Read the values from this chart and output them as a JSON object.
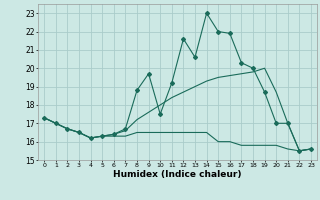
{
  "xlabel": "Humidex (Indice chaleur)",
  "bg_color": "#cce8e4",
  "grid_color": "#aaccca",
  "line_color": "#1a6b5a",
  "xlim": [
    -0.5,
    23.5
  ],
  "ylim": [
    15,
    23.5
  ],
  "xticks": [
    0,
    1,
    2,
    3,
    4,
    5,
    6,
    7,
    8,
    9,
    10,
    11,
    12,
    13,
    14,
    15,
    16,
    17,
    18,
    19,
    20,
    21,
    22,
    23
  ],
  "yticks": [
    15,
    16,
    17,
    18,
    19,
    20,
    21,
    22,
    23
  ],
  "line1_x": [
    0,
    1,
    2,
    3,
    4,
    5,
    6,
    7,
    8,
    9,
    10,
    11,
    12,
    13,
    14,
    15,
    16,
    17,
    18,
    19,
    20,
    21,
    22,
    23
  ],
  "line1_y": [
    17.3,
    17.0,
    16.7,
    16.5,
    16.2,
    16.3,
    16.4,
    16.7,
    18.8,
    19.7,
    17.5,
    19.2,
    21.6,
    20.6,
    23.0,
    22.0,
    21.9,
    20.3,
    20.0,
    18.7,
    17.0,
    17.0,
    15.5,
    15.6
  ],
  "line2_x": [
    0,
    1,
    2,
    3,
    4,
    5,
    6,
    7,
    8,
    9,
    10,
    11,
    12,
    13,
    14,
    15,
    16,
    17,
    18,
    19,
    20,
    21,
    22,
    23
  ],
  "line2_y": [
    17.3,
    17.0,
    16.7,
    16.5,
    16.2,
    16.3,
    16.3,
    16.3,
    16.5,
    16.5,
    16.5,
    16.5,
    16.5,
    16.5,
    16.5,
    16.0,
    16.0,
    15.8,
    15.8,
    15.8,
    15.8,
    15.6,
    15.5,
    15.6
  ],
  "line3_x": [
    0,
    1,
    2,
    3,
    4,
    5,
    6,
    7,
    8,
    9,
    10,
    11,
    12,
    13,
    14,
    15,
    16,
    17,
    18,
    19,
    20,
    21,
    22,
    23
  ],
  "line3_y": [
    17.3,
    17.0,
    16.7,
    16.5,
    16.2,
    16.3,
    16.4,
    16.6,
    17.2,
    17.6,
    18.0,
    18.4,
    18.7,
    19.0,
    19.3,
    19.5,
    19.6,
    19.7,
    19.8,
    20.0,
    18.7,
    17.0,
    15.5,
    15.6
  ]
}
